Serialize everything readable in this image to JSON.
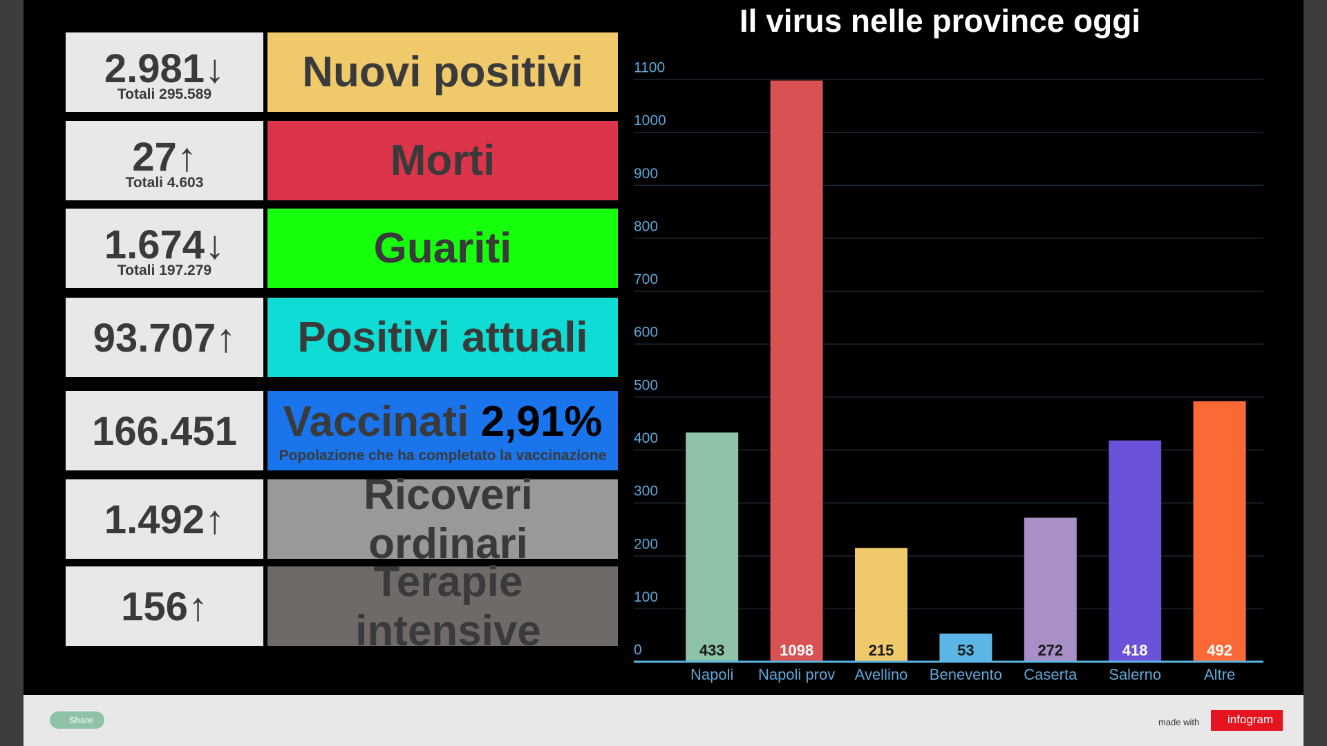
{
  "stats": [
    {
      "value": "2.981↓",
      "total": "Totali 295.589",
      "label": "Nuovi positivi",
      "color": "#f0c96b"
    },
    {
      "value": "27↑",
      "total": "Totali 4.603",
      "label": "Morti",
      "color": "#dc344a"
    },
    {
      "value": "1.674↓",
      "total": "Totali 197.279",
      "label": "Guariti",
      "color": "#16ff0c"
    },
    {
      "value": "93.707↑",
      "label": "Positivi attuali",
      "color": "#0fdcd4"
    },
    {
      "value": "166.451",
      "label": "Vaccinati",
      "highlight": "2,91%",
      "note": "Popolazione che ha completato la vaccinazione",
      "color": "#1a74ec"
    },
    {
      "value": "1.492↑",
      "label": "Ricoveri ordinari",
      "color": "#999999"
    },
    {
      "value": "156↑",
      "label": "Terapie intensive",
      "color": "#6f6a68"
    }
  ],
  "chart_data": {
    "type": "bar",
    "title": "Il virus nelle province oggi",
    "categories": [
      "Napoli",
      "Napoli prov",
      "Avellino",
      "Benevento",
      "Caserta",
      "Salerno",
      "Altre"
    ],
    "values": [
      433,
      1098,
      215,
      53,
      272,
      418,
      492
    ],
    "colors": [
      "#8ec3a7",
      "#d95253",
      "#f0c96b",
      "#5bb6e6",
      "#a98fc7",
      "#6c52d9",
      "#fb6a36"
    ],
    "ylim": [
      0,
      1100
    ],
    "yticks": [
      0,
      100,
      200,
      300,
      400,
      500,
      600,
      700,
      800,
      900,
      1000,
      1100
    ],
    "grid": true
  },
  "footer": {
    "share": "Share",
    "made_with": "made with",
    "brand": "infogram"
  }
}
